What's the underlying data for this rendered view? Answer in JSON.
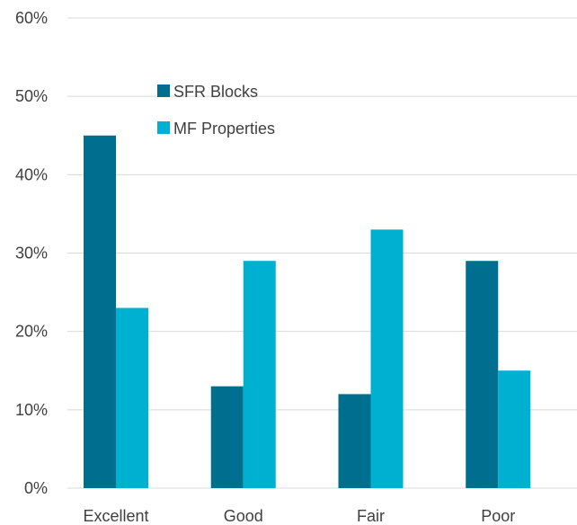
{
  "chart_data": {
    "type": "bar",
    "categories": [
      "Excellent",
      "Good",
      "Fair",
      "Poor"
    ],
    "series": [
      {
        "name": "SFR Blocks",
        "values": [
          45,
          13,
          12,
          29
        ],
        "color": "#006f8f"
      },
      {
        "name": "MF Properties",
        "values": [
          23,
          29,
          33,
          15
        ],
        "color": "#00b0d0"
      }
    ],
    "title": "",
    "xlabel": "",
    "ylabel": "",
    "ylim": [
      0,
      60
    ],
    "yticks": [
      0,
      10,
      20,
      30,
      40,
      50,
      60
    ],
    "ytick_labels": [
      "0%",
      "10%",
      "20%",
      "30%",
      "40%",
      "50%",
      "60%"
    ],
    "grid": "horizontal",
    "legend_position": "top-left inside plot"
  }
}
